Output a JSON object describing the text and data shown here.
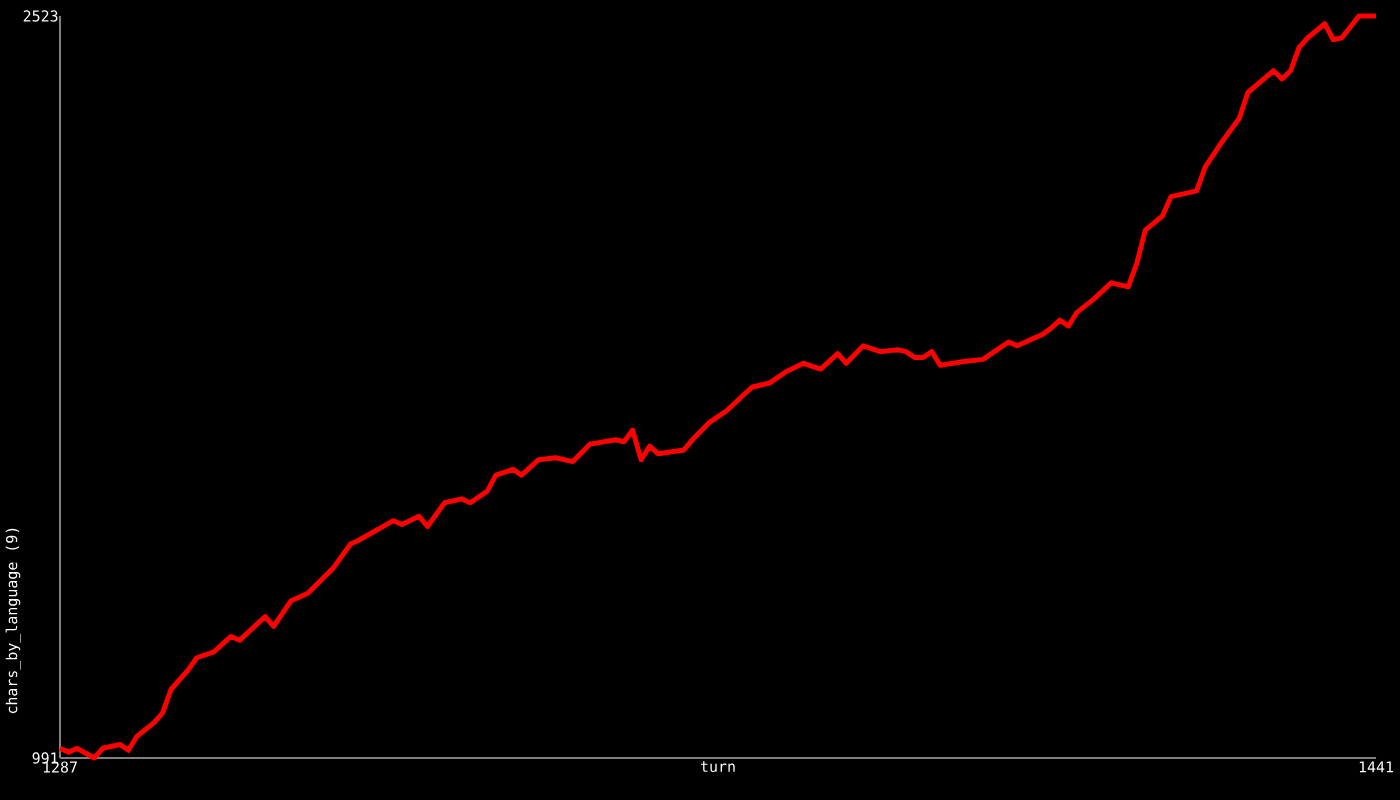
{
  "chart_data": {
    "type": "line",
    "xlabel": "turn",
    "ylabel": "chars_by_language (9)",
    "color": "#ff0000",
    "line_style": "solid",
    "x": [
      1287,
      1288,
      1289,
      1291,
      1292,
      1294,
      1295,
      1296,
      1298,
      1299,
      1300,
      1302,
      1303,
      1305,
      1307,
      1308,
      1311,
      1312,
      1314,
      1316,
      1319,
      1321,
      1322,
      1326,
      1327,
      1329,
      1330,
      1332,
      1334,
      1335,
      1337,
      1338,
      1340,
      1341,
      1343,
      1345,
      1347,
      1349,
      1352,
      1353,
      1354,
      1355,
      1356,
      1357,
      1360,
      1361,
      1363,
      1365,
      1367,
      1368,
      1370,
      1372,
      1374,
      1376,
      1378,
      1379,
      1381,
      1383,
      1385,
      1386,
      1387,
      1388,
      1389,
      1390,
      1393,
      1395,
      1398,
      1399,
      1402,
      1403,
      1404,
      1405,
      1406,
      1408,
      1410,
      1412,
      1413,
      1414,
      1416,
      1417,
      1420,
      1421,
      1423,
      1425,
      1426,
      1429,
      1430,
      1431,
      1432,
      1433,
      1435,
      1436,
      1437,
      1439,
      1441
    ],
    "values": [
      1011,
      1003,
      1011,
      991,
      1011,
      1019,
      1007,
      1036,
      1064,
      1084,
      1133,
      1173,
      1198,
      1210,
      1242,
      1234,
      1283,
      1263,
      1315,
      1331,
      1384,
      1433,
      1441,
      1481,
      1473,
      1490,
      1469,
      1518,
      1526,
      1518,
      1542,
      1575,
      1587,
      1575,
      1607,
      1611,
      1603,
      1639,
      1648,
      1644,
      1668,
      1607,
      1635,
      1619,
      1627,
      1648,
      1684,
      1708,
      1741,
      1757,
      1765,
      1789,
      1806,
      1794,
      1826,
      1806,
      1842,
      1830,
      1834,
      1830,
      1818,
      1818,
      1830,
      1802,
      1810,
      1814,
      1850,
      1842,
      1866,
      1879,
      1895,
      1883,
      1911,
      1939,
      1972,
      1964,
      2012,
      2081,
      2110,
      2150,
      2162,
      2211,
      2264,
      2312,
      2365,
      2410,
      2393,
      2410,
      2458,
      2478,
      2507,
      2474,
      2478,
      2523,
      2523
    ],
    "xlim": [
      1287,
      1441
    ],
    "ylim": [
      991,
      2523
    ],
    "xticks": [
      1287,
      1441
    ],
    "yticks": [
      991,
      2523
    ]
  }
}
